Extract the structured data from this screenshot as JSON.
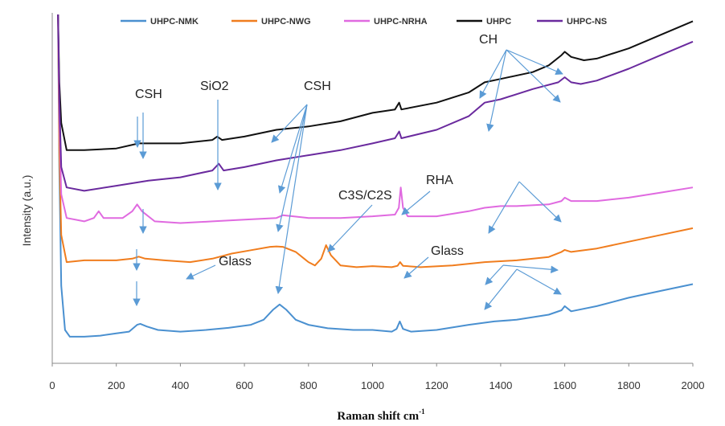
{
  "chart_data": {
    "type": "line",
    "title": "",
    "xlabel": "Raman shift cm",
    "xlabel_sup": "-1",
    "ylabel": "Intensity (a.u.)",
    "xlim": [
      0,
      2000
    ],
    "ylim": [
      0,
      100
    ],
    "x_ticks": [
      0,
      200,
      400,
      600,
      800,
      1000,
      1200,
      1400,
      1600,
      1800,
      2000
    ],
    "grid": false,
    "legend_position": "top",
    "series": [
      {
        "name": "UHPC-NMK",
        "color": "#4a90d0",
        "points": [
          [
            18,
            100
          ],
          [
            22,
            55
          ],
          [
            28,
            20
          ],
          [
            40,
            7
          ],
          [
            55,
            5
          ],
          [
            100,
            5
          ],
          [
            150,
            5.3
          ],
          [
            200,
            6
          ],
          [
            240,
            6.5
          ],
          [
            265,
            8.5
          ],
          [
            275,
            8.8
          ],
          [
            295,
            8
          ],
          [
            330,
            7
          ],
          [
            400,
            6.5
          ],
          [
            480,
            7
          ],
          [
            550,
            7.6
          ],
          [
            620,
            8.5
          ],
          [
            660,
            10
          ],
          [
            690,
            13
          ],
          [
            710,
            14.5
          ],
          [
            730,
            13
          ],
          [
            760,
            10
          ],
          [
            800,
            8.5
          ],
          [
            860,
            7.5
          ],
          [
            940,
            7
          ],
          [
            1000,
            7
          ],
          [
            1060,
            6.5
          ],
          [
            1075,
            7.3
          ],
          [
            1085,
            9.5
          ],
          [
            1095,
            7.3
          ],
          [
            1120,
            6.5
          ],
          [
            1200,
            7
          ],
          [
            1300,
            8.5
          ],
          [
            1380,
            9.5
          ],
          [
            1450,
            10
          ],
          [
            1550,
            11.5
          ],
          [
            1590,
            12.8
          ],
          [
            1600,
            14
          ],
          [
            1620,
            12.5
          ],
          [
            1700,
            14
          ],
          [
            1800,
            16.5
          ],
          [
            1900,
            18.5
          ],
          [
            2000,
            20.5
          ]
        ]
      },
      {
        "name": "UHPC-NWG",
        "color": "#f07d1e",
        "points": [
          [
            18,
            100
          ],
          [
            22,
            60
          ],
          [
            28,
            35
          ],
          [
            45,
            27
          ],
          [
            100,
            27.5
          ],
          [
            150,
            27.5
          ],
          [
            200,
            27.5
          ],
          [
            250,
            28
          ],
          [
            270,
            28.6
          ],
          [
            290,
            28
          ],
          [
            350,
            27.5
          ],
          [
            430,
            27
          ],
          [
            500,
            28
          ],
          [
            560,
            29.5
          ],
          [
            620,
            30.5
          ],
          [
            680,
            31.5
          ],
          [
            700,
            31.6
          ],
          [
            720,
            31.5
          ],
          [
            760,
            30
          ],
          [
            800,
            27
          ],
          [
            820,
            26
          ],
          [
            840,
            28
          ],
          [
            855,
            32
          ],
          [
            870,
            29
          ],
          [
            900,
            26
          ],
          [
            950,
            25.5
          ],
          [
            1000,
            25.8
          ],
          [
            1060,
            25.5
          ],
          [
            1078,
            25.9
          ],
          [
            1086,
            27
          ],
          [
            1095,
            25.9
          ],
          [
            1150,
            25.5
          ],
          [
            1250,
            26
          ],
          [
            1350,
            27
          ],
          [
            1450,
            27.5
          ],
          [
            1550,
            28.5
          ],
          [
            1590,
            30
          ],
          [
            1600,
            30.6
          ],
          [
            1620,
            30
          ],
          [
            1700,
            31
          ],
          [
            1800,
            33
          ],
          [
            1900,
            35
          ],
          [
            2000,
            37
          ]
        ]
      },
      {
        "name": "UHPC-NRHA",
        "color": "#e06ae0",
        "points": [
          [
            18,
            100
          ],
          [
            22,
            70
          ],
          [
            28,
            47
          ],
          [
            45,
            40
          ],
          [
            100,
            39
          ],
          [
            130,
            40
          ],
          [
            145,
            42
          ],
          [
            160,
            40
          ],
          [
            220,
            40
          ],
          [
            250,
            42
          ],
          [
            265,
            44
          ],
          [
            280,
            42
          ],
          [
            320,
            39
          ],
          [
            400,
            38.5
          ],
          [
            500,
            39
          ],
          [
            600,
            39.5
          ],
          [
            700,
            40
          ],
          [
            720,
            40.8
          ],
          [
            800,
            40
          ],
          [
            900,
            40
          ],
          [
            1000,
            40.5
          ],
          [
            1070,
            41
          ],
          [
            1082,
            43
          ],
          [
            1088,
            49
          ],
          [
            1095,
            43
          ],
          [
            1110,
            40.5
          ],
          [
            1200,
            40.5
          ],
          [
            1300,
            42
          ],
          [
            1350,
            43
          ],
          [
            1400,
            43.5
          ],
          [
            1450,
            43.5
          ],
          [
            1550,
            44
          ],
          [
            1590,
            45
          ],
          [
            1600,
            46
          ],
          [
            1620,
            45
          ],
          [
            1700,
            45
          ],
          [
            1800,
            46
          ],
          [
            1900,
            47.5
          ],
          [
            2000,
            49
          ]
        ]
      },
      {
        "name": "UHPC",
        "color": "#111111",
        "points": [
          [
            18,
            100
          ],
          [
            22,
            80
          ],
          [
            28,
            68
          ],
          [
            45,
            60
          ],
          [
            100,
            60
          ],
          [
            200,
            60.5
          ],
          [
            270,
            62
          ],
          [
            300,
            62
          ],
          [
            400,
            62
          ],
          [
            500,
            63
          ],
          [
            515,
            64
          ],
          [
            530,
            63
          ],
          [
            600,
            64
          ],
          [
            700,
            66
          ],
          [
            800,
            67
          ],
          [
            900,
            68.5
          ],
          [
            1000,
            71
          ],
          [
            1070,
            72
          ],
          [
            1083,
            74
          ],
          [
            1090,
            72
          ],
          [
            1200,
            74
          ],
          [
            1300,
            77
          ],
          [
            1350,
            80
          ],
          [
            1400,
            81
          ],
          [
            1500,
            83
          ],
          [
            1550,
            85
          ],
          [
            1590,
            88
          ],
          [
            1600,
            89
          ],
          [
            1620,
            87.5
          ],
          [
            1660,
            86.5
          ],
          [
            1700,
            87
          ],
          [
            1800,
            90
          ],
          [
            1900,
            94
          ],
          [
            2000,
            98
          ]
        ]
      },
      {
        "name": "UHPC-NS",
        "color": "#6a2a9e",
        "points": [
          [
            18,
            100
          ],
          [
            22,
            75
          ],
          [
            28,
            55
          ],
          [
            45,
            49
          ],
          [
            100,
            48
          ],
          [
            200,
            49.5
          ],
          [
            300,
            51
          ],
          [
            400,
            52
          ],
          [
            500,
            54
          ],
          [
            520,
            56
          ],
          [
            535,
            54
          ],
          [
            600,
            55
          ],
          [
            700,
            57
          ],
          [
            800,
            58.5
          ],
          [
            900,
            60
          ],
          [
            1000,
            62
          ],
          [
            1070,
            63.5
          ],
          [
            1083,
            65.5
          ],
          [
            1090,
            63.5
          ],
          [
            1200,
            66
          ],
          [
            1300,
            70
          ],
          [
            1350,
            74
          ],
          [
            1400,
            75
          ],
          [
            1500,
            78
          ],
          [
            1580,
            80
          ],
          [
            1600,
            81.5
          ],
          [
            1620,
            80
          ],
          [
            1650,
            79.5
          ],
          [
            1700,
            80.5
          ],
          [
            1800,
            84
          ],
          [
            1900,
            88
          ],
          [
            2000,
            92
          ]
        ]
      }
    ],
    "annotations": [
      {
        "text": "CSH"
      },
      {
        "text": "SiO2"
      },
      {
        "text": "CSH"
      },
      {
        "text": "CH"
      },
      {
        "text": "C3S/C2S"
      },
      {
        "text": "RHA"
      },
      {
        "text": "Glass"
      },
      {
        "text": "Glass"
      }
    ]
  }
}
